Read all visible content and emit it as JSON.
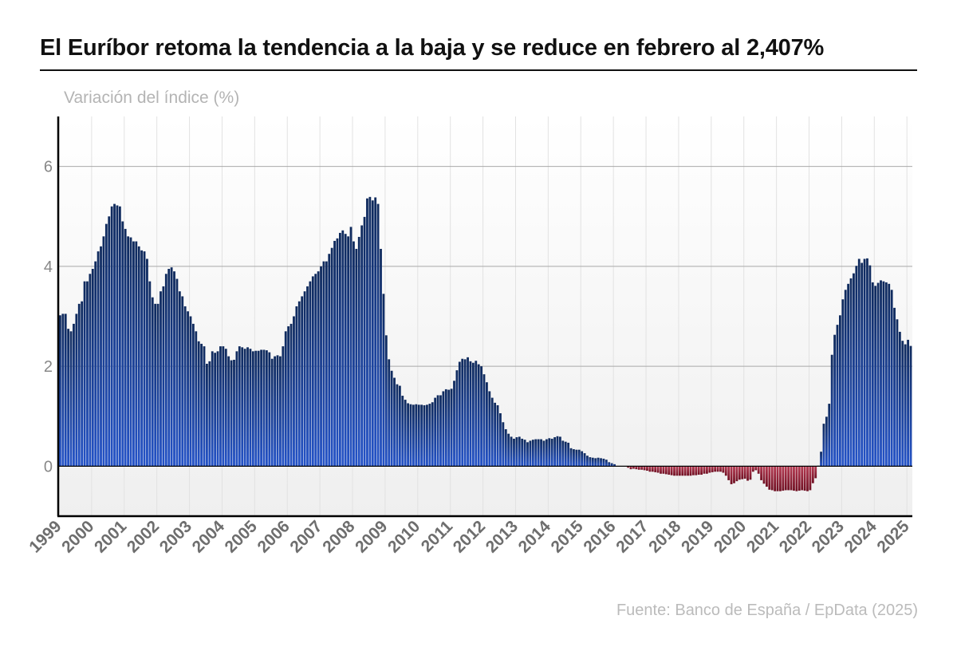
{
  "header": {
    "title": "El Euríbor retoma la tendencia a la baja y se reduce en febrero al 2,407%",
    "subtitle": "Variación del índice (%)"
  },
  "footer": {
    "source": "Fuente: Banco de España / EpData (2025)"
  },
  "colors": {
    "positive_top": "#0f2a5c",
    "positive_bottom": "#2453c8",
    "negative_top": "#b63a52",
    "negative_bottom": "#6e0f22",
    "grid": "#d6d6d6",
    "axis": "#000000",
    "tick_text": "#888888",
    "x_tick_text": "#6e6e6e"
  },
  "chart_data": {
    "type": "bar",
    "title": "El Euríbor retoma la tendencia a la baja y se reduce en febrero al 2,407%",
    "ylabel": "Variación del índice (%)",
    "xlabel": "",
    "ylim": [
      -1,
      7
    ],
    "yticks": [
      0,
      2,
      4,
      6
    ],
    "grid": true,
    "legend": "none",
    "x_tick_labels": [
      "1999",
      "2000",
      "2001",
      "2002",
      "2003",
      "2004",
      "2005",
      "2006",
      "2007",
      "2008",
      "2009",
      "2010",
      "2011",
      "2012",
      "2013",
      "2014",
      "2015",
      "2016",
      "2017",
      "2018",
      "2019",
      "2020",
      "2021",
      "2022",
      "2023",
      "2024",
      "2025"
    ],
    "x_start": "1999-01",
    "x_end": "2025-02",
    "annual_values": [
      {
        "year": "1999",
        "values": [
          3.02,
          3.05,
          3.05,
          2.75,
          2.7,
          2.85,
          3.05,
          3.25,
          3.3,
          3.7,
          3.7,
          3.85
        ]
      },
      {
        "year": "2000",
        "values": [
          3.95,
          4.1,
          4.3,
          4.4,
          4.6,
          4.85,
          5.0,
          5.2,
          5.25,
          5.22,
          5.2,
          4.9
        ]
      },
      {
        "year": "2001",
        "values": [
          4.75,
          4.6,
          4.58,
          4.5,
          4.5,
          4.4,
          4.32,
          4.3,
          4.15,
          3.7,
          3.38,
          3.25
        ]
      },
      {
        "year": "2002",
        "values": [
          3.25,
          3.5,
          3.6,
          3.85,
          3.95,
          3.98,
          3.9,
          3.75,
          3.5,
          3.4,
          3.2,
          3.1
        ]
      },
      {
        "year": "2003",
        "values": [
          3.0,
          2.85,
          2.7,
          2.5,
          2.45,
          2.4,
          2.05,
          2.1,
          2.3,
          2.27,
          2.3,
          2.4
        ]
      },
      {
        "year": "2004",
        "values": [
          2.4,
          2.35,
          2.2,
          2.12,
          2.13,
          2.3,
          2.4,
          2.38,
          2.35,
          2.38,
          2.35,
          2.3
        ]
      },
      {
        "year": "2005",
        "values": [
          2.31,
          2.31,
          2.33,
          2.33,
          2.32,
          2.28,
          2.15,
          2.2,
          2.22,
          2.2,
          2.4,
          2.7
        ]
      },
      {
        "year": "2006",
        "values": [
          2.8,
          2.85,
          3.0,
          3.2,
          3.3,
          3.4,
          3.5,
          3.6,
          3.7,
          3.8,
          3.85,
          3.9
        ]
      },
      {
        "year": "2007",
        "values": [
          4.0,
          4.1,
          4.1,
          4.25,
          4.37,
          4.51,
          4.56,
          4.67,
          4.72,
          4.65,
          4.6,
          4.79
        ]
      },
      {
        "year": "2008",
        "values": [
          4.5,
          4.35,
          4.59,
          4.82,
          4.99,
          5.36,
          5.39,
          5.32,
          5.38,
          5.25,
          4.35,
          3.45
        ]
      },
      {
        "year": "2009",
        "values": [
          2.62,
          2.14,
          1.91,
          1.77,
          1.64,
          1.61,
          1.41,
          1.33,
          1.26,
          1.24,
          1.23,
          1.24
        ]
      },
      {
        "year": "2010",
        "values": [
          1.23,
          1.23,
          1.22,
          1.23,
          1.25,
          1.28,
          1.37,
          1.42,
          1.42,
          1.5,
          1.54,
          1.53
        ]
      },
      {
        "year": "2011",
        "values": [
          1.55,
          1.71,
          1.92,
          2.09,
          2.15,
          2.14,
          2.18,
          2.1,
          2.07,
          2.11,
          2.04,
          2.0
        ]
      },
      {
        "year": "2012",
        "values": [
          1.84,
          1.68,
          1.5,
          1.37,
          1.27,
          1.22,
          1.06,
          0.88,
          0.74,
          0.65,
          0.59,
          0.55
        ]
      },
      {
        "year": "2013",
        "values": [
          0.58,
          0.59,
          0.55,
          0.53,
          0.48,
          0.51,
          0.53,
          0.54,
          0.54,
          0.54,
          0.51,
          0.54
        ]
      },
      {
        "year": "2014",
        "values": [
          0.56,
          0.55,
          0.58,
          0.6,
          0.59,
          0.51,
          0.49,
          0.47,
          0.36,
          0.34,
          0.33,
          0.33
        ]
      },
      {
        "year": "2015",
        "values": [
          0.3,
          0.26,
          0.21,
          0.18,
          0.17,
          0.16,
          0.17,
          0.16,
          0.15,
          0.13,
          0.08,
          0.06
        ]
      },
      {
        "year": "2016",
        "values": [
          0.04,
          -0.01,
          -0.01,
          -0.01,
          -0.01,
          -0.03,
          -0.06,
          -0.05,
          -0.06,
          -0.07,
          -0.07,
          -0.08
        ]
      },
      {
        "year": "2017",
        "values": [
          -0.09,
          -0.11,
          -0.11,
          -0.12,
          -0.13,
          -0.15,
          -0.15,
          -0.16,
          -0.17,
          -0.18,
          -0.19,
          -0.19
        ]
      },
      {
        "year": "2018",
        "values": [
          -0.19,
          -0.19,
          -0.19,
          -0.19,
          -0.19,
          -0.18,
          -0.18,
          -0.17,
          -0.17,
          -0.15,
          -0.15,
          -0.13
        ]
      },
      {
        "year": "2019",
        "values": [
          -0.12,
          -0.11,
          -0.11,
          -0.11,
          -0.13,
          -0.19,
          -0.28,
          -0.36,
          -0.34,
          -0.3,
          -0.27,
          -0.26
        ]
      },
      {
        "year": "2020",
        "values": [
          -0.25,
          -0.29,
          -0.27,
          -0.11,
          -0.08,
          -0.15,
          -0.28,
          -0.35,
          -0.41,
          -0.47,
          -0.48,
          -0.5
        ]
      },
      {
        "year": "2021",
        "values": [
          -0.5,
          -0.5,
          -0.49,
          -0.48,
          -0.48,
          -0.48,
          -0.49,
          -0.5,
          -0.49,
          -0.48,
          -0.49,
          -0.5
        ]
      },
      {
        "year": "2022",
        "values": [
          -0.48,
          -0.34,
          -0.24,
          0.01,
          0.29,
          0.85,
          0.99,
          1.25,
          2.23,
          2.63,
          2.83,
          3.02
        ]
      },
      {
        "year": "2023",
        "values": [
          3.34,
          3.53,
          3.65,
          3.76,
          3.86,
          4.01,
          4.15,
          4.07,
          4.15,
          4.16,
          4.02,
          3.68
        ]
      },
      {
        "year": "2024",
        "values": [
          3.61,
          3.67,
          3.72,
          3.7,
          3.68,
          3.65,
          3.53,
          3.17,
          2.94,
          2.69,
          2.51,
          2.44
        ]
      },
      {
        "year": "2025",
        "values": [
          2.53,
          2.407
        ]
      }
    ]
  }
}
